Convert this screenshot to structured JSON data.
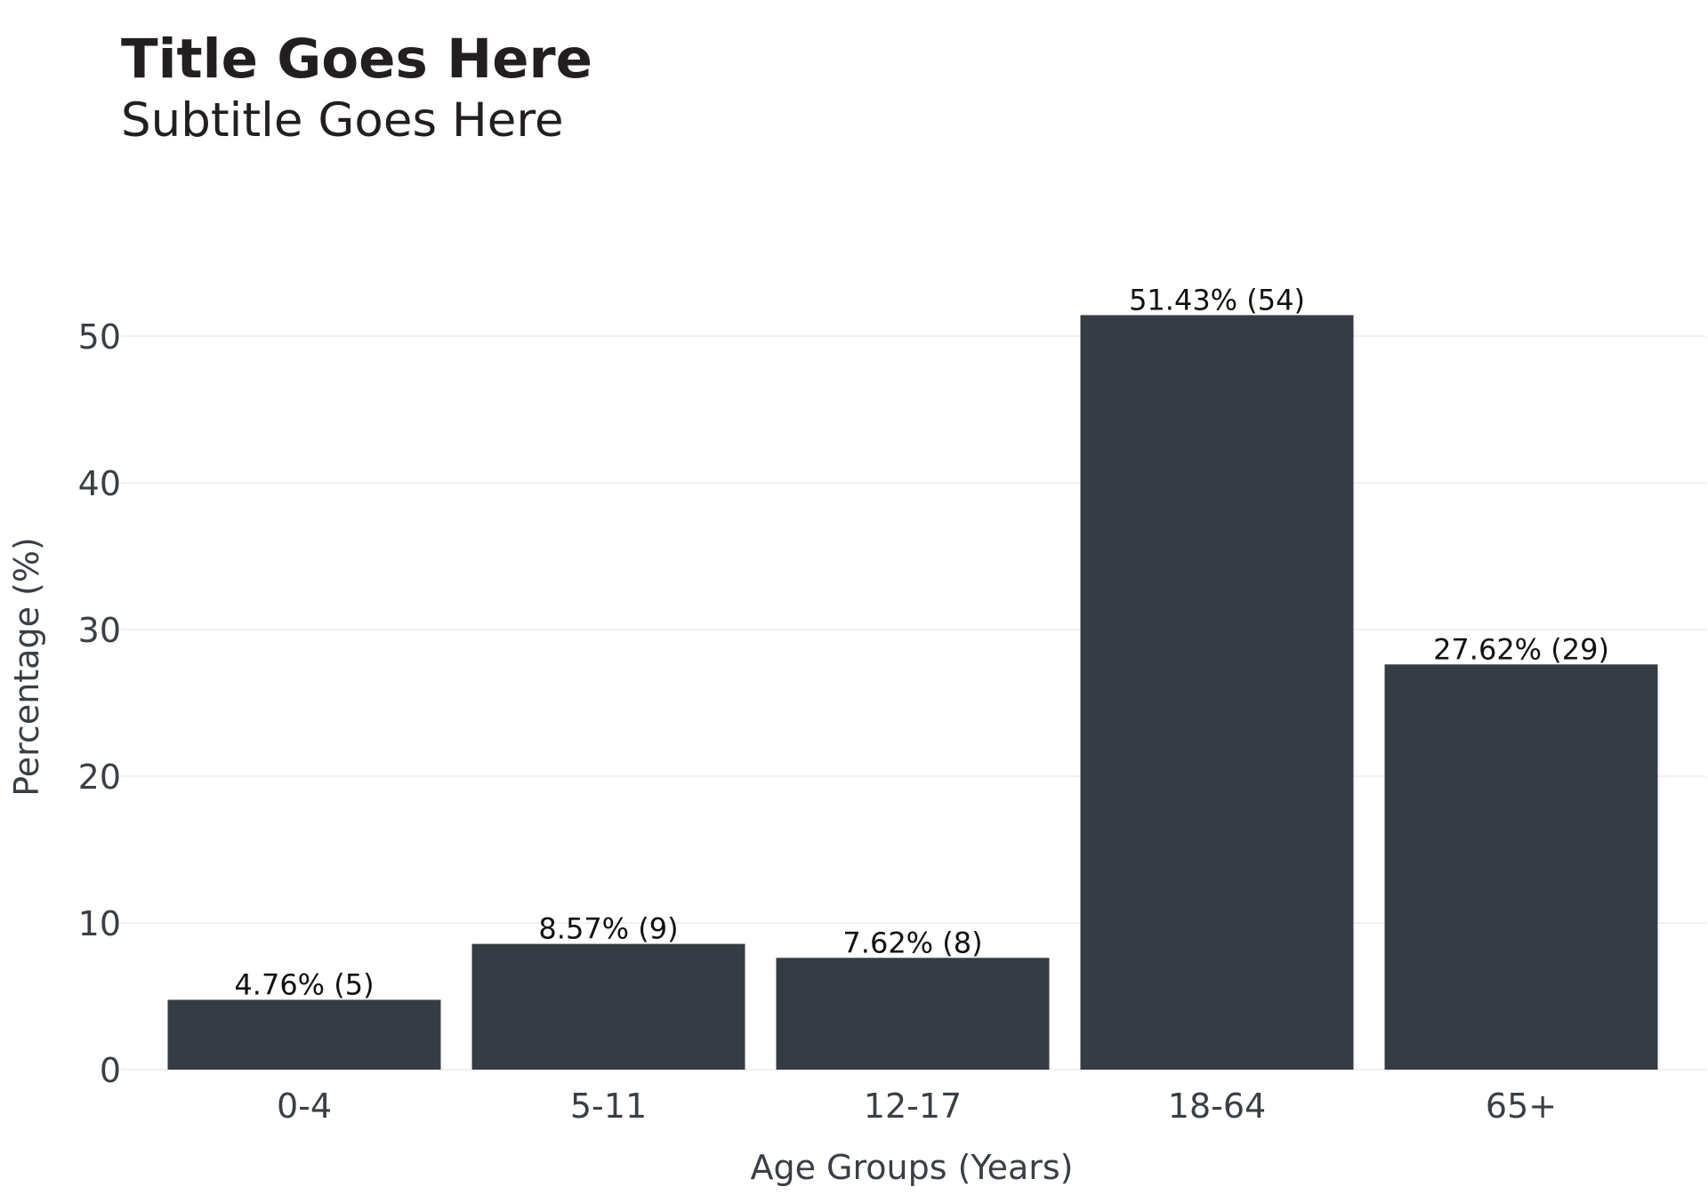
{
  "chart_data": {
    "type": "bar",
    "title": "Title Goes Here",
    "subtitle": "Subtitle Goes Here",
    "xlabel": "Age Groups (Years)",
    "ylabel": "Percentage (%)",
    "categories": [
      "0-4",
      "5-11",
      "12-17",
      "18-64",
      "65+"
    ],
    "values": [
      4.76,
      8.57,
      7.62,
      51.43,
      27.62
    ],
    "counts": [
      5,
      9,
      8,
      54,
      29
    ],
    "data_labels": [
      "4.76% (5)",
      "8.57% (9)",
      "7.62% (8)",
      "51.43% (54)",
      "27.62% (29)"
    ],
    "yticks": [
      0,
      10,
      20,
      30,
      40,
      50
    ],
    "ytick_labels": [
      "0",
      "10",
      "20",
      "30",
      "40",
      "50"
    ],
    "ylim": [
      0,
      54
    ],
    "grid": true,
    "legend": "none",
    "colors": {
      "bar": "#363c43",
      "grid": "#ebebeb",
      "text": "#231f20",
      "axis_text": "#3a3f45"
    }
  }
}
